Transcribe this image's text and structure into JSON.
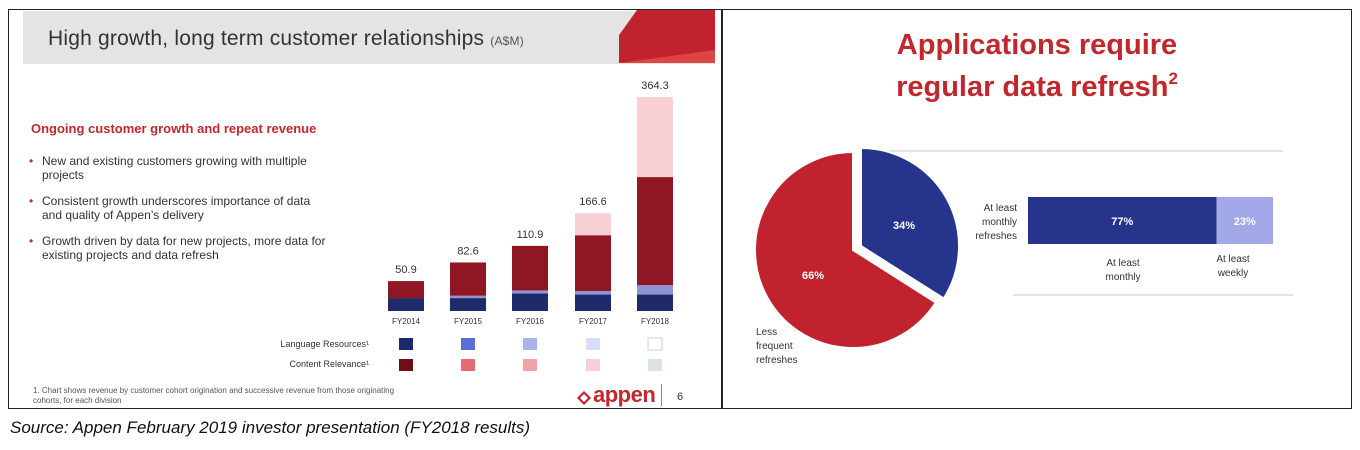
{
  "left_slide": {
    "title": "High growth, long term customer relationships",
    "title_unit": "(A$M)",
    "subheading": "Ongoing customer growth and repeat revenue",
    "bullets": [
      "New and existing customers growing with multiple projects",
      "Consistent growth underscores importance of data and quality of Appen’s delivery",
      "Growth driven by data for new projects, more data for existing projects and data refresh"
    ],
    "legend": {
      "language_label": "Language Resources¹",
      "content_label": "Content Relevance¹",
      "language_colors": [
        "#1f2a6b",
        "#5a6fd6",
        "#a9b3ee",
        "#d8dcf6",
        "#ffffff"
      ],
      "content_colors": [
        "#6d0f16",
        "#e46a73",
        "#f0a3a9",
        "#f8d0d3",
        "#dde2e2"
      ]
    },
    "footnote": "1. Chart shows revenue by customer cohort origination and successive revenue from those originating cohorts, for each division",
    "logo_text": "appen",
    "page_number": "6"
  },
  "right_slide": {
    "title_line1": "Applications require",
    "title_line2": "regular data refresh",
    "title_sup": "2",
    "bar_caption": [
      "At least",
      "monthly",
      "refreshes"
    ],
    "pie_caption": [
      "Less",
      "frequent",
      "refreshes"
    ],
    "bar_axis_labels": [
      [
        "At least",
        "monthly"
      ],
      [
        "At least",
        "weekly"
      ]
    ]
  },
  "caption": "Source: Appen February 2019 investor presentation (FY2018 results)",
  "chart_data": [
    {
      "type": "bar",
      "stacked": true,
      "title": "",
      "xlabel": "",
      "ylabel": "",
      "categories": [
        "FY2014",
        "FY2015",
        "FY2016",
        "FY2017",
        "FY2018"
      ],
      "totals": [
        50.9,
        82.6,
        110.9,
        166.6,
        364.3
      ],
      "series": [
        {
          "values": [
            22,
            22,
            30,
            28,
            28
          ]
        },
        {
          "values": [
            0,
            4,
            5,
            6,
            16
          ]
        },
        {
          "values": [
            28.9,
            56.6,
            75.9,
            95,
            184
          ]
        },
        {
          "values": [
            0,
            0,
            0,
            37.6,
            136.3
          ]
        }
      ],
      "series_colors": [
        "#1f2a6b",
        "#8e95d6",
        "#8e1723",
        "#f8d0d3"
      ],
      "ylim": [
        0,
        364.3
      ]
    },
    {
      "type": "pie",
      "title": "",
      "labels": [
        "monthly refreshes",
        "less frequent refreshes"
      ],
      "values": [
        34,
        66
      ],
      "display": [
        "34%",
        "66%"
      ],
      "colors": [
        "#27348b",
        "#c0222e"
      ]
    },
    {
      "type": "bar",
      "stacked": true,
      "orientation": "horizontal",
      "title": "",
      "categories": [
        "At least monthly refreshes"
      ],
      "series": [
        {
          "name": "At least monthly",
          "values": [
            77
          ],
          "display": "77%"
        },
        {
          "name": "At least weekly",
          "values": [
            23
          ],
          "display": "23%"
        }
      ],
      "colors": [
        "#27348b",
        "#a3a8e8"
      ]
    }
  ]
}
